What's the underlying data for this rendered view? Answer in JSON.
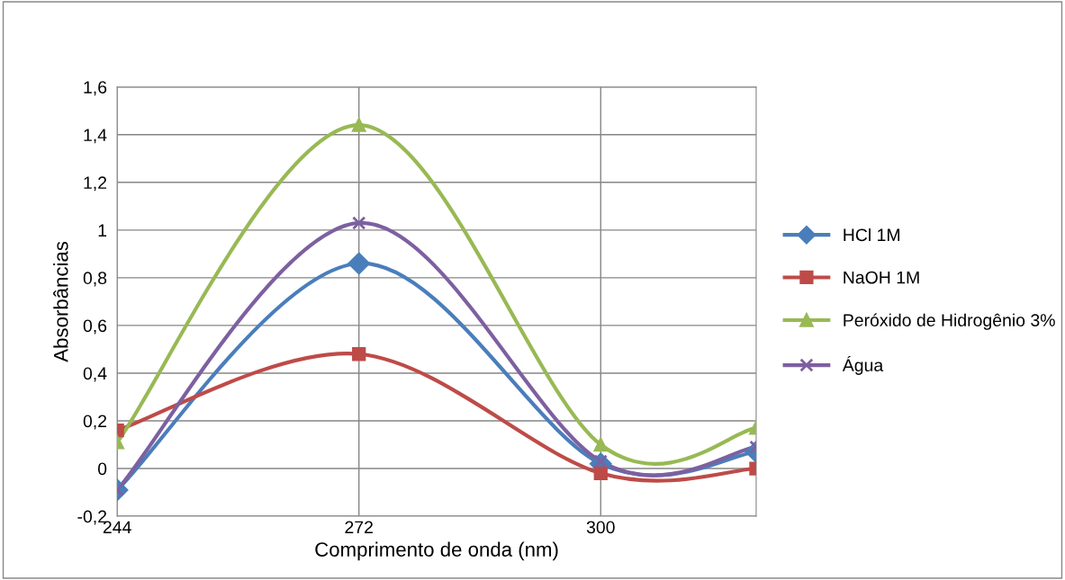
{
  "chart_data": {
    "type": "line",
    "xlabel": "Comprimento de onda (nm)",
    "ylabel": "Absorbâncias",
    "x": [
      244,
      272,
      300,
      318
    ],
    "series": [
      {
        "name": "HCl 1M",
        "color": "#4a7ebb",
        "marker": "diamond",
        "values": [
          -0.09,
          0.86,
          0.02,
          0.07
        ]
      },
      {
        "name": "NaOH 1M",
        "color": "#be4b48",
        "marker": "square",
        "values": [
          0.16,
          0.48,
          -0.02,
          0.0
        ]
      },
      {
        "name": "Peróxido de Hidrogênio 3%",
        "color": "#98b954",
        "marker": "triangle",
        "values": [
          0.11,
          1.44,
          0.1,
          0.17
        ]
      },
      {
        "name": "Água",
        "color": "#7d60a0",
        "marker": "cross",
        "values": [
          -0.09,
          1.03,
          0.03,
          0.09
        ]
      }
    ],
    "xlim": [
      244,
      318
    ],
    "xticks": [
      244,
      272,
      300
    ],
    "ylim": [
      -0.2,
      1.6
    ],
    "yticks": [
      {
        "value": -0.2,
        "label": "-0,2"
      },
      {
        "value": 0,
        "label": "0"
      },
      {
        "value": 0.2,
        "label": "0,2"
      },
      {
        "value": 0.4,
        "label": "0,4"
      },
      {
        "value": 0.6,
        "label": "0,6"
      },
      {
        "value": 0.8,
        "label": "0,8"
      },
      {
        "value": 1,
        "label": "1"
      },
      {
        "value": 1.2,
        "label": "1,2"
      },
      {
        "value": 1.4,
        "label": "1,4"
      },
      {
        "value": 1.6,
        "label": "1,6"
      }
    ],
    "grid": true,
    "legend": "right",
    "line_style": "solid"
  }
}
